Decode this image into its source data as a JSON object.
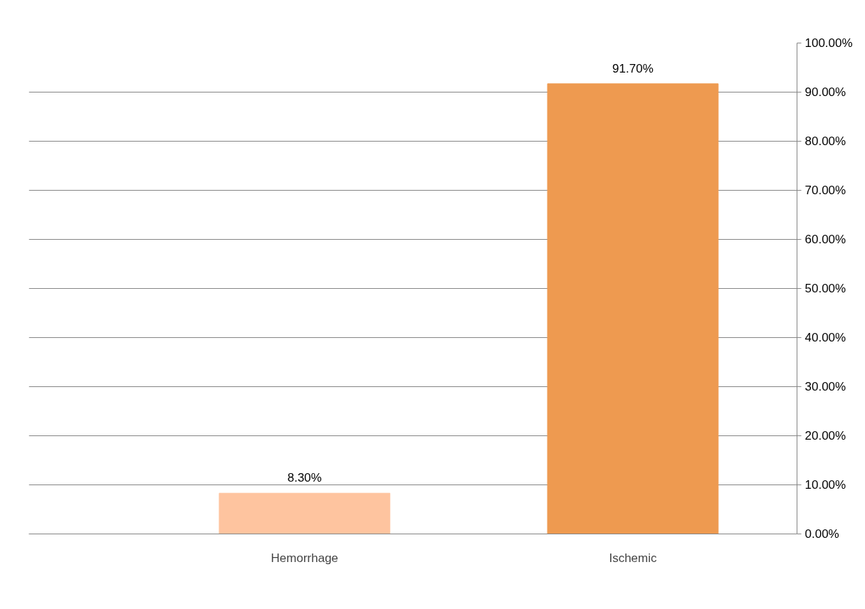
{
  "chart_data": {
    "type": "bar",
    "categories": [
      "Hemorrhage",
      "Ischemic"
    ],
    "values": [
      8.3,
      91.7
    ],
    "colors": [
      "#fec49f",
      "#ee9a50"
    ],
    "value_labels": [
      "8.30%",
      "91.70%"
    ],
    "ylim": [
      0,
      100
    ],
    "yticks": [
      {
        "value": 0,
        "label": "0.00%"
      },
      {
        "value": 10,
        "label": "10.00%"
      },
      {
        "value": 20,
        "label": "20.00%"
      },
      {
        "value": 30,
        "label": "30.00%"
      },
      {
        "value": 40,
        "label": "40.00%"
      },
      {
        "value": 50,
        "label": "50.00%"
      },
      {
        "value": 60,
        "label": "60.00%"
      },
      {
        "value": 70,
        "label": "70.00%"
      },
      {
        "value": 80,
        "label": "80.00%"
      },
      {
        "value": 90,
        "label": "90.00%"
      },
      {
        "value": 100,
        "label": "100.00%"
      }
    ],
    "grid": "y"
  }
}
